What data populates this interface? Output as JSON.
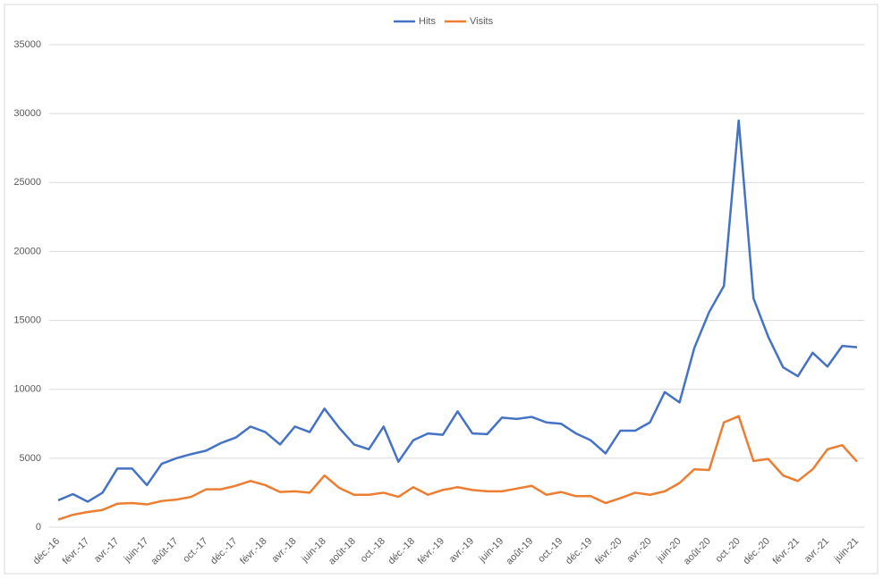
{
  "chart_data": {
    "type": "line",
    "categories": [
      "déc.-16",
      null,
      "févr.-17",
      null,
      "avr.-17",
      null,
      "juin-17",
      null,
      "août-17",
      null,
      "oct.-17",
      null,
      "déc.-17",
      null,
      "févr.-18",
      null,
      "avr.-18",
      null,
      "juin-18",
      null,
      "août-18",
      null,
      "oct.-18",
      null,
      "déc.-18",
      null,
      "févr.-19",
      null,
      "avr.-19",
      null,
      "juin-19",
      null,
      "août-19",
      null,
      "oct.-19",
      null,
      "déc.-19",
      null,
      "févr.-20",
      null,
      "avr.-20",
      null,
      "juin-20",
      null,
      "août-20",
      null,
      "oct.-20",
      null,
      "déc.-20",
      null,
      "févr.-21",
      null,
      "avr.-21",
      null,
      "juin-21"
    ],
    "series": [
      {
        "name": "Hits",
        "color": "#4472c4",
        "values": [
          1950,
          2400,
          1850,
          2500,
          4250,
          4250,
          3050,
          4600,
          5000,
          5300,
          5550,
          6100,
          6500,
          7300,
          6900,
          6000,
          7300,
          6900,
          8600,
          7200,
          6000,
          5650,
          7300,
          4750,
          6300,
          6800,
          6700,
          8400,
          6800,
          6750,
          7950,
          7850,
          8000,
          7600,
          7500,
          6800,
          6300,
          5350,
          7000,
          7000,
          7600,
          9800,
          9050,
          13000,
          15600,
          17500,
          29500,
          16600,
          13800,
          11600,
          10950,
          12650,
          11650,
          13150,
          13050
        ]
      },
      {
        "name": "Visits",
        "color": "#ed7d31",
        "values": [
          550,
          900,
          1100,
          1250,
          1700,
          1750,
          1650,
          1900,
          2000,
          2200,
          2750,
          2750,
          3000,
          3350,
          3050,
          2550,
          2600,
          2500,
          3750,
          2850,
          2350,
          2350,
          2500,
          2200,
          2900,
          2350,
          2700,
          2900,
          2700,
          2600,
          2600,
          2800,
          3000,
          2350,
          2550,
          2250,
          2250,
          1750,
          2100,
          2500,
          2350,
          2600,
          3200,
          4200,
          4150,
          7600,
          8050,
          4800,
          4950,
          3750,
          3350,
          4200,
          5650,
          5950,
          4750
        ]
      }
    ],
    "ylim": [
      0,
      35000
    ],
    "yticks": [
      0,
      5000,
      10000,
      15000,
      20000,
      25000,
      30000,
      35000
    ],
    "grid": true,
    "legend": "top"
  }
}
